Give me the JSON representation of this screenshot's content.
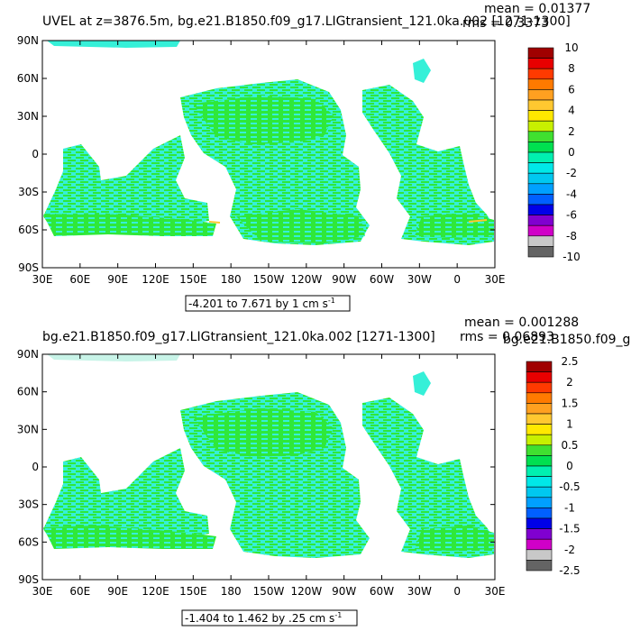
{
  "chart_data": [
    {
      "type": "heatmap",
      "title": "UVEL at z=3876.5m, bg.e21.B1850.f09_g17.LIGtransient_121.0ka.002 [1271-1300]",
      "stats": {
        "mean": "mean = 0.01377",
        "rms": "rms = 0.3373"
      },
      "contour_info": "-4.201 to 7.671 by 1 cm s",
      "contour_unit_exp": "-1",
      "y_ticks": [
        "90N",
        "60N",
        "30N",
        "0",
        "30S",
        "60S",
        "90S"
      ],
      "x_ticks": [
        "30E",
        "60E",
        "90E",
        "120E",
        "150E",
        "180",
        "150W",
        "120W",
        "90W",
        "60W",
        "30W",
        "0",
        "30E"
      ],
      "colorbar_labels": [
        "10",
        "8",
        "6",
        "4",
        "2",
        "0",
        "-2",
        "-4",
        "-6",
        "-8",
        "-10"
      ],
      "colorbar_colors": [
        "#a00000",
        "#e80000",
        "#ff3a00",
        "#ff7a00",
        "#ffa020",
        "#ffc830",
        "#ffe800",
        "#c8f000",
        "#40e030",
        "#00e050",
        "#00f0b0",
        "#00e8e8",
        "#00c8f0",
        "#00a0ff",
        "#0060ff",
        "#0000e8",
        "#8000d0",
        "#d000c8",
        "#c8c8c8",
        "#646464"
      ],
      "xlim": [
        30,
        390
      ],
      "ylim": [
        -90,
        90
      ]
    },
    {
      "type": "heatmap",
      "title": "bg.e21.B1850.f09_g17.LIGtransient_121.0ka.002 [1271-1300]",
      "title_right": "bg.e21.B1850.f09_g",
      "stats": {
        "mean": "mean = 0.001288",
        "rms": "rms = 0.06893"
      },
      "contour_info": "-1.404 to 1.462 by .25 cm s",
      "contour_unit_exp": "-1",
      "y_ticks": [
        "90N",
        "60N",
        "30N",
        "0",
        "30S",
        "60S",
        "90S"
      ],
      "x_ticks": [
        "30E",
        "60E",
        "90E",
        "120E",
        "150E",
        "180",
        "150W",
        "120W",
        "90W",
        "60W",
        "30W",
        "0",
        "30E"
      ],
      "colorbar_labels": [
        "2.5",
        "2",
        "1.5",
        "1",
        "0.5",
        "0",
        "-0.5",
        "-1",
        "-1.5",
        "-2",
        "-2.5"
      ],
      "colorbar_colors": [
        "#a00000",
        "#e80000",
        "#ff3a00",
        "#ff7a00",
        "#ffa020",
        "#ffc830",
        "#ffe800",
        "#c8f000",
        "#40e030",
        "#00e050",
        "#00f0b0",
        "#00e8e8",
        "#00c8f0",
        "#00a0ff",
        "#0060ff",
        "#0000e8",
        "#8000d0",
        "#d000c8",
        "#c8c8c8",
        "#646464"
      ],
      "xlim": [
        30,
        390
      ],
      "ylim": [
        -90,
        90
      ]
    }
  ],
  "colors": {
    "green": "#2fe83a",
    "cyan": "#35f0d8",
    "ice": "#c8f4e8"
  }
}
